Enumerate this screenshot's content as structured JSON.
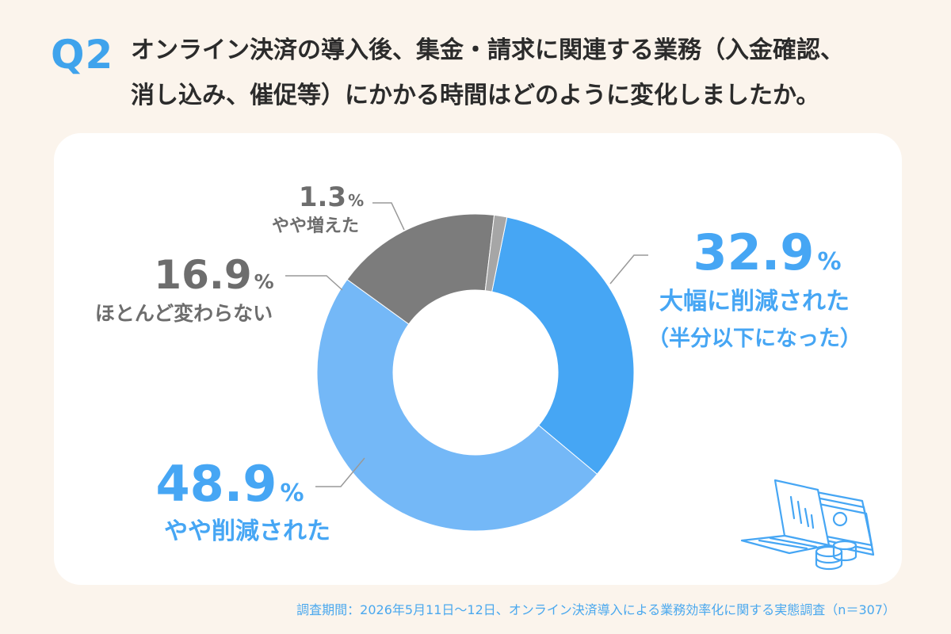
{
  "header": {
    "badge": "Q2",
    "title_line1": "オンライン決済の導入後、集金・請求に関連する業務（入金確認、",
    "title_line2": "消し込み、催促等）にかかる時間はどのように変化しましたか。"
  },
  "chart_data": {
    "type": "pie",
    "donut": true,
    "slices": [
      {
        "value_label": "32.9",
        "unit": "%",
        "label": "大幅に削減された",
        "sublabel": "（半分以下になった）",
        "value": 32.9,
        "color": "#46a6f4"
      },
      {
        "value_label": "48.9",
        "unit": "%",
        "label": "やや削減された",
        "value": 48.9,
        "color": "#74b8f7"
      },
      {
        "value_label": "16.9",
        "unit": "%",
        "label": "ほとんど変わらない",
        "value": 16.9,
        "color": "#7c7c7c"
      },
      {
        "value_label": "1.3",
        "unit": "%",
        "label": "やや増えた",
        "value": 1.3,
        "color": "#a6a6a6"
      }
    ]
  },
  "footer": {
    "note": "調査期間：2026年5月11日～12日、オンライン決済導入による業務効率化に関する実態調査（n＝307）"
  },
  "illustration": {
    "icon": "laptop-chart-money-coins-icon"
  }
}
